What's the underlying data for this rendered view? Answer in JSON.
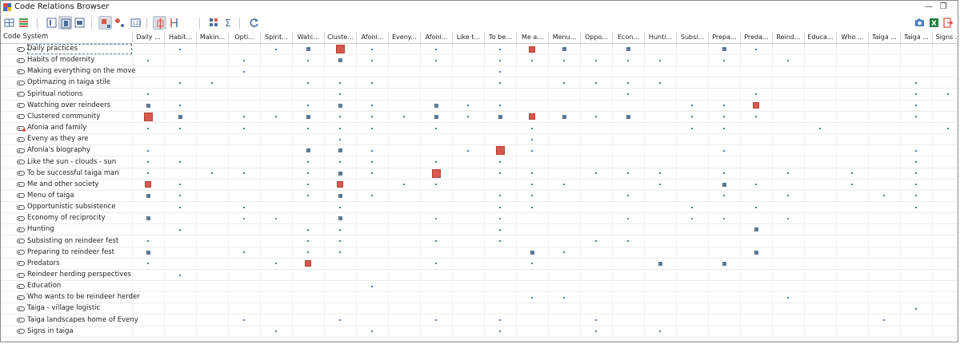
{
  "window": {
    "title": "Code Relations Browser"
  },
  "toolbar": {
    "left_buttons": [
      {
        "name": "expand-all-icon",
        "active": false
      },
      {
        "name": "code-colors-icon",
        "active": false
      },
      {
        "name": "view-mode-1-icon",
        "active": false
      },
      {
        "name": "view-mode-2-icon",
        "active": true
      },
      {
        "name": "view-mode-3-icon",
        "active": false
      },
      {
        "name": "squares-symbol-icon",
        "active": true
      },
      {
        "name": "circles-symbol-icon",
        "active": false
      },
      {
        "name": "numbers-symbol-icon",
        "active": false
      },
      {
        "name": "intersection-icon",
        "active": true
      },
      {
        "name": "proximity-icon",
        "active": false
      },
      {
        "name": "grid-settings-icon",
        "active": false
      },
      {
        "name": "sum-icon",
        "active": false
      },
      {
        "name": "refresh-icon",
        "active": false
      }
    ],
    "right_buttons": [
      "camera-icon",
      "excel-export-icon",
      "exit-icon"
    ],
    "sum_glyph": "Σ"
  },
  "grid": {
    "row_header_title": "Code System",
    "columns": [
      "Daily ...",
      "Habit...",
      "Makin...",
      "Opti...",
      "Spirit...",
      "Watc...",
      "Cluste...",
      "Afoni...",
      "Eveny...",
      "Afoni...",
      "Like t...",
      "To be...",
      "Me a...",
      "Menu...",
      "Oppo...",
      "Econ...",
      "Hunti...",
      "Subsi...",
      "Prepa...",
      "Preda...",
      "Reind...",
      "Educa...",
      "Who ...",
      "Taiga ...",
      "Taiga ...",
      "Signs ..."
    ],
    "rows": [
      {
        "label": "Daily practices",
        "selected": true,
        "memo": false
      },
      {
        "label": "Habits of modernity",
        "selected": false,
        "memo": false
      },
      {
        "label": "Making everything on the move",
        "selected": false,
        "memo": false
      },
      {
        "label": "Optimazing in taiga stile",
        "selected": false,
        "memo": false
      },
      {
        "label": "Spiritual notions",
        "selected": false,
        "memo": false
      },
      {
        "label": "Watching over reindeers",
        "selected": false,
        "memo": false
      },
      {
        "label": "Clustered community",
        "selected": false,
        "memo": false
      },
      {
        "label": "Afonia and family",
        "selected": false,
        "memo": true
      },
      {
        "label": "Eveny as they are",
        "selected": false,
        "memo": false
      },
      {
        "label": "Afonia's biography",
        "selected": false,
        "memo": false
      },
      {
        "label": "Like the sun - clouds - sun",
        "selected": false,
        "memo": false
      },
      {
        "label": "To be successful taiga man",
        "selected": false,
        "memo": false
      },
      {
        "label": "Me and other society",
        "selected": false,
        "memo": false
      },
      {
        "label": "Menu of taiga",
        "selected": false,
        "memo": false
      },
      {
        "label": "Opportunistic subsistence",
        "selected": false,
        "memo": false
      },
      {
        "label": "Economy of reciprocity",
        "selected": false,
        "memo": false
      },
      {
        "label": "Hunting",
        "selected": false,
        "memo": false
      },
      {
        "label": "Subsisting on reindeer fest",
        "selected": false,
        "memo": false
      },
      {
        "label": "Preparing to reindeer fest",
        "selected": false,
        "memo": false
      },
      {
        "label": "Predators",
        "selected": false,
        "memo": false
      },
      {
        "label": "Reindeer herding perspectives",
        "selected": false,
        "memo": false
      },
      {
        "label": "Education",
        "selected": false,
        "memo": false
      },
      {
        "label": "Who wants to be reindeer herder",
        "selected": false,
        "memo": false
      },
      {
        "label": "Taiga - village logistic",
        "selected": false,
        "memo": false
      },
      {
        "label": "Taiga landscapes home of Eveny",
        "selected": false,
        "memo": false
      },
      {
        "label": "Signs in taiga",
        "selected": false,
        "memo": false
      }
    ],
    "marks": [
      [
        0,
        1,
        1
      ],
      [
        0,
        4,
        1
      ],
      [
        0,
        5,
        2
      ],
      [
        0,
        6,
        4
      ],
      [
        0,
        7,
        1
      ],
      [
        0,
        9,
        1
      ],
      [
        0,
        11,
        1
      ],
      [
        0,
        12,
        3
      ],
      [
        0,
        13,
        2
      ],
      [
        0,
        15,
        2
      ],
      [
        0,
        18,
        2
      ],
      [
        0,
        19,
        1
      ],
      [
        1,
        0,
        1
      ],
      [
        1,
        3,
        1
      ],
      [
        1,
        5,
        1
      ],
      [
        1,
        6,
        2
      ],
      [
        1,
        7,
        1
      ],
      [
        1,
        9,
        1
      ],
      [
        1,
        11,
        1
      ],
      [
        1,
        12,
        1
      ],
      [
        1,
        13,
        1
      ],
      [
        1,
        14,
        1
      ],
      [
        1,
        15,
        1
      ],
      [
        1,
        16,
        1
      ],
      [
        1,
        18,
        1
      ],
      [
        1,
        20,
        1
      ],
      [
        2,
        3,
        1
      ],
      [
        2,
        11,
        1
      ],
      [
        3,
        1,
        1
      ],
      [
        3,
        2,
        1
      ],
      [
        3,
        5,
        1
      ],
      [
        3,
        6,
        1
      ],
      [
        3,
        7,
        1
      ],
      [
        3,
        11,
        1
      ],
      [
        3,
        13,
        1
      ],
      [
        3,
        14,
        1
      ],
      [
        3,
        15,
        1
      ],
      [
        3,
        16,
        1
      ],
      [
        3,
        24,
        1
      ],
      [
        4,
        0,
        1
      ],
      [
        4,
        6,
        1
      ],
      [
        4,
        15,
        1
      ],
      [
        4,
        19,
        1
      ],
      [
        4,
        24,
        1
      ],
      [
        4,
        25,
        1
      ],
      [
        5,
        0,
        2
      ],
      [
        5,
        1,
        1
      ],
      [
        5,
        5,
        1
      ],
      [
        5,
        6,
        2
      ],
      [
        5,
        7,
        1
      ],
      [
        5,
        9,
        2
      ],
      [
        5,
        10,
        1
      ],
      [
        5,
        11,
        1
      ],
      [
        5,
        17,
        1
      ],
      [
        5,
        18,
        1
      ],
      [
        5,
        19,
        3
      ],
      [
        5,
        24,
        1
      ],
      [
        6,
        0,
        4
      ],
      [
        6,
        1,
        2
      ],
      [
        6,
        3,
        1
      ],
      [
        6,
        4,
        1
      ],
      [
        6,
        5,
        2
      ],
      [
        6,
        6,
        1
      ],
      [
        6,
        7,
        1
      ],
      [
        6,
        8,
        1
      ],
      [
        6,
        9,
        2
      ],
      [
        6,
        10,
        1
      ],
      [
        6,
        11,
        2
      ],
      [
        6,
        12,
        3
      ],
      [
        6,
        13,
        2
      ],
      [
        6,
        14,
        1
      ],
      [
        6,
        15,
        2
      ],
      [
        6,
        17,
        1
      ],
      [
        6,
        18,
        1
      ],
      [
        6,
        19,
        1
      ],
      [
        6,
        24,
        1
      ],
      [
        7,
        0,
        1
      ],
      [
        7,
        1,
        1
      ],
      [
        7,
        3,
        1
      ],
      [
        7,
        5,
        1
      ],
      [
        7,
        6,
        1
      ],
      [
        7,
        7,
        1
      ],
      [
        7,
        9,
        1
      ],
      [
        7,
        12,
        1
      ],
      [
        7,
        17,
        1
      ],
      [
        7,
        18,
        1
      ],
      [
        7,
        21,
        1
      ],
      [
        7,
        25,
        1
      ],
      [
        8,
        6,
        1
      ],
      [
        8,
        12,
        1
      ],
      [
        9,
        0,
        1
      ],
      [
        9,
        5,
        2
      ],
      [
        9,
        6,
        2
      ],
      [
        9,
        7,
        1
      ],
      [
        9,
        10,
        1
      ],
      [
        9,
        11,
        4
      ],
      [
        9,
        12,
        1
      ],
      [
        9,
        18,
        1
      ],
      [
        9,
        24,
        1
      ],
      [
        10,
        0,
        1
      ],
      [
        10,
        1,
        1
      ],
      [
        10,
        5,
        1
      ],
      [
        10,
        6,
        1
      ],
      [
        10,
        7,
        1
      ],
      [
        10,
        9,
        1
      ],
      [
        10,
        11,
        1
      ],
      [
        10,
        24,
        1
      ],
      [
        11,
        0,
        1
      ],
      [
        11,
        2,
        1
      ],
      [
        11,
        3,
        1
      ],
      [
        11,
        5,
        1
      ],
      [
        11,
        6,
        2
      ],
      [
        11,
        7,
        1
      ],
      [
        11,
        9,
        4
      ],
      [
        11,
        11,
        1
      ],
      [
        11,
        12,
        1
      ],
      [
        11,
        14,
        1
      ],
      [
        11,
        15,
        1
      ],
      [
        11,
        16,
        1
      ],
      [
        11,
        18,
        1
      ],
      [
        11,
        20,
        1
      ],
      [
        11,
        22,
        1
      ],
      [
        11,
        24,
        1
      ],
      [
        12,
        0,
        3
      ],
      [
        12,
        1,
        1
      ],
      [
        12,
        5,
        1
      ],
      [
        12,
        6,
        3
      ],
      [
        12,
        8,
        1
      ],
      [
        12,
        9,
        1
      ],
      [
        12,
        12,
        1
      ],
      [
        12,
        13,
        1
      ],
      [
        12,
        16,
        1
      ],
      [
        12,
        18,
        2
      ],
      [
        12,
        19,
        1
      ],
      [
        12,
        22,
        1
      ],
      [
        12,
        24,
        1
      ],
      [
        13,
        0,
        2
      ],
      [
        13,
        1,
        1
      ],
      [
        13,
        5,
        1
      ],
      [
        13,
        6,
        2
      ],
      [
        13,
        7,
        1
      ],
      [
        13,
        11,
        1
      ],
      [
        13,
        12,
        1
      ],
      [
        13,
        15,
        1
      ],
      [
        13,
        18,
        1
      ],
      [
        13,
        20,
        1
      ],
      [
        13,
        23,
        1
      ],
      [
        13,
        24,
        1
      ],
      [
        14,
        1,
        1
      ],
      [
        14,
        3,
        1
      ],
      [
        14,
        6,
        1
      ],
      [
        14,
        11,
        1
      ],
      [
        14,
        12,
        1
      ],
      [
        14,
        17,
        1
      ],
      [
        14,
        19,
        1
      ],
      [
        14,
        24,
        1
      ],
      [
        15,
        0,
        2
      ],
      [
        15,
        3,
        1
      ],
      [
        15,
        4,
        1
      ],
      [
        15,
        6,
        2
      ],
      [
        15,
        9,
        1
      ],
      [
        15,
        11,
        1
      ],
      [
        15,
        15,
        1
      ],
      [
        15,
        17,
        1
      ],
      [
        15,
        18,
        1
      ],
      [
        15,
        20,
        1
      ],
      [
        16,
        1,
        1
      ],
      [
        16,
        5,
        1
      ],
      [
        16,
        6,
        1
      ],
      [
        16,
        11,
        1
      ],
      [
        16,
        19,
        2
      ],
      [
        17,
        0,
        1
      ],
      [
        17,
        5,
        1
      ],
      [
        17,
        6,
        1
      ],
      [
        17,
        9,
        1
      ],
      [
        17,
        11,
        1
      ],
      [
        17,
        14,
        1
      ],
      [
        17,
        15,
        1
      ],
      [
        18,
        0,
        2
      ],
      [
        18,
        3,
        1
      ],
      [
        18,
        5,
        1
      ],
      [
        18,
        6,
        1
      ],
      [
        18,
        12,
        2
      ],
      [
        18,
        13,
        1
      ],
      [
        18,
        19,
        2
      ],
      [
        19,
        0,
        1
      ],
      [
        19,
        4,
        1
      ],
      [
        19,
        5,
        3
      ],
      [
        19,
        9,
        1
      ],
      [
        19,
        12,
        1
      ],
      [
        19,
        16,
        2
      ],
      [
        19,
        18,
        2
      ],
      [
        20,
        1,
        1
      ],
      [
        21,
        7,
        1
      ],
      [
        22,
        12,
        1
      ],
      [
        22,
        13,
        1
      ],
      [
        22,
        20,
        1
      ],
      [
        23,
        24,
        1
      ],
      [
        24,
        3,
        1
      ],
      [
        24,
        6,
        1
      ],
      [
        24,
        9,
        1
      ],
      [
        24,
        11,
        1
      ],
      [
        24,
        14,
        1
      ],
      [
        24,
        23,
        1
      ],
      [
        25,
        4,
        1
      ],
      [
        25,
        7,
        1
      ],
      [
        25,
        11,
        1
      ],
      [
        25,
        14,
        1
      ],
      [
        25,
        16,
        1
      ]
    ],
    "colors": {
      "accent": "#d9574a",
      "marker": "#5a7a95",
      "dot": "#4a7aa6",
      "selected_outline": "#6a7fa0"
    }
  }
}
